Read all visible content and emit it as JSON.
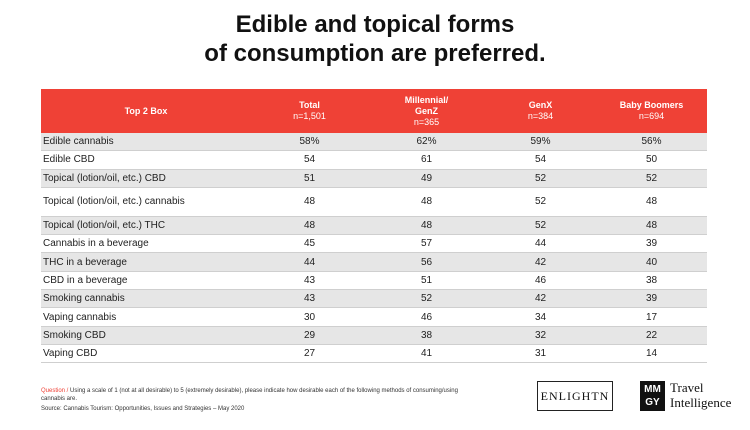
{
  "title_line1": "Edible and topical forms",
  "title_line2": "of consumption are preferred.",
  "table": {
    "header": {
      "label": "Top 2 Box",
      "columns": [
        {
          "name": "Total",
          "sub": "n=1,501"
        },
        {
          "name": "Millennial/\nGenZ",
          "sub": "n=365"
        },
        {
          "name": "GenX",
          "sub": "n=384"
        },
        {
          "name": "Baby Boomers",
          "sub": "n=694"
        }
      ]
    },
    "rows": [
      {
        "label": "Edible cannabis",
        "values": [
          "58%",
          "62%",
          "59%",
          "56%"
        ]
      },
      {
        "label": "Edible CBD",
        "values": [
          "54",
          "61",
          "54",
          "50"
        ]
      },
      {
        "label": "Topical (lotion/oil, etc.) CBD",
        "values": [
          "51",
          "49",
          "52",
          "52"
        ]
      },
      {
        "label": "Topical (lotion/oil, etc.) cannabis",
        "values": [
          "48",
          "48",
          "52",
          "48"
        ]
      },
      {
        "label": "Topical (lotion/oil, etc.) THC",
        "values": [
          "48",
          "48",
          "52",
          "48"
        ]
      },
      {
        "label": "Cannabis in a beverage",
        "values": [
          "45",
          "57",
          "44",
          "39"
        ]
      },
      {
        "label": "THC in a beverage",
        "values": [
          "44",
          "56",
          "42",
          "40"
        ]
      },
      {
        "label": "CBD in a beverage",
        "values": [
          "43",
          "51",
          "46",
          "38"
        ]
      },
      {
        "label": "Smoking cannabis",
        "values": [
          "43",
          "52",
          "42",
          "39"
        ]
      },
      {
        "label": "Vaping cannabis",
        "values": [
          "30",
          "46",
          "34",
          "17"
        ]
      },
      {
        "label": "Smoking CBD",
        "values": [
          "29",
          "38",
          "32",
          "22"
        ]
      },
      {
        "label": "Vaping CBD",
        "values": [
          "27",
          "41",
          "31",
          "14"
        ]
      }
    ]
  },
  "footnote": {
    "key": "Question /",
    "text": " Using a scale of 1 (not at all desirable) to 5 (extremely desirable), please indicate how desirable each of the following methods of consuming/using cannabis are.",
    "source": "Source: Cannabis Tourism: Opportunities, Issues and Strategies – May 2020"
  },
  "logos": {
    "enlightn": "ENLIGHTN",
    "mmgy_line1": "MM",
    "mmgy_line2": "GY",
    "travel_line1": "Travel",
    "travel_line2": "Intelligence"
  },
  "colors": {
    "accent": "#ef4136",
    "shade": "#e6e6e6"
  }
}
